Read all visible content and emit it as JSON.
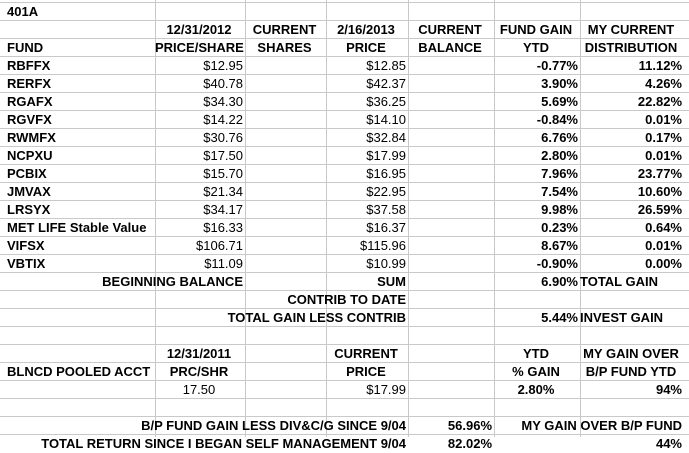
{
  "title": "401A",
  "header1": {
    "date_prev": "12/31/2012",
    "current_shares": "CURRENT",
    "date_now": "2/16/2013",
    "current_balance": "CURRENT",
    "fund_gain": "FUND GAIN",
    "my_current": "MY CURRENT"
  },
  "header2": {
    "fund": "FUND",
    "price_share": "PRICE/SHARE",
    "shares": "SHARES",
    "current_price": "CURRENT",
    "price": "PRICE",
    "balance": "BALANCE",
    "ytd": "YTD",
    "distribution": "DISTRIBUTION"
  },
  "header_row2_price": "PRICE",
  "funds": [
    {
      "name": "RBFFX",
      "prev_price": "$12.95",
      "cur_price": "$12.85",
      "ytd": "-0.77%",
      "dist": "11.12%"
    },
    {
      "name": "RERFX",
      "prev_price": "$40.78",
      "cur_price": "$42.37",
      "ytd": "3.90%",
      "dist": "4.26%"
    },
    {
      "name": "RGAFX",
      "prev_price": "$34.30",
      "cur_price": "$36.25",
      "ytd": "5.69%",
      "dist": "22.82%"
    },
    {
      "name": "RGVFX",
      "prev_price": "$14.22",
      "cur_price": "$14.10",
      "ytd": "-0.84%",
      "dist": "0.01%"
    },
    {
      "name": "RWMFX",
      "prev_price": "$30.76",
      "cur_price": "$32.84",
      "ytd": "6.76%",
      "dist": "0.17%"
    },
    {
      "name": "NCPXU",
      "prev_price": "$17.50",
      "cur_price": "$17.99",
      "ytd": "2.80%",
      "dist": "0.01%"
    },
    {
      "name": "PCBIX",
      "prev_price": "$15.70",
      "cur_price": "$16.95",
      "ytd": "7.96%",
      "dist": "23.77%"
    },
    {
      "name": "JMVAX",
      "prev_price": "$21.34",
      "cur_price": "$22.95",
      "ytd": "7.54%",
      "dist": "10.60%"
    },
    {
      "name": "LRSYX",
      "prev_price": "$34.17",
      "cur_price": "$37.58",
      "ytd": "9.98%",
      "dist": "26.59%"
    },
    {
      "name": "MET LIFE Stable Value",
      "prev_price": "$16.33",
      "cur_price": "$16.37",
      "ytd": "0.23%",
      "dist": "0.64%"
    },
    {
      "name": "VIFSX",
      "prev_price": "$106.71",
      "cur_price": "$115.96",
      "ytd": "8.67%",
      "dist": "0.01%"
    },
    {
      "name": "VBTIX",
      "prev_price": "$11.09",
      "cur_price": "$10.99",
      "ytd": "-0.90%",
      "dist": "0.00%"
    }
  ],
  "summary": {
    "beginning_balance": "BEGINNING BALANCE",
    "sum": "SUM",
    "total_gain_value": "6.90%",
    "total_gain_label": "TOTAL GAIN",
    "contrib_to_date": "CONTRIB TO DATE",
    "total_gain_less_contrib": "TOTAL GAIN LESS CONTRIB",
    "invest_gain_value": "5.44%",
    "invest_gain_label": "INVEST GAIN"
  },
  "pooled": {
    "date": "12/31/2011",
    "current": "CURRENT",
    "ytd": "YTD",
    "my_gain_over": "MY GAIN OVER",
    "acct_name": "BLNCD POOLED ACCT",
    "prc_shr": "PRC/SHR",
    "price": "PRICE",
    "pct_gain": "% GAIN",
    "bp_fund_ytd": "B/P FUND YTD",
    "prev_price": "17.50",
    "cur_price": "$17.99",
    "ytd_value": "2.80%",
    "gain_over_value": "94%"
  },
  "footer": {
    "bp_gain_label": "B/P FUND GAIN LESS DIV&C/G SINCE 9/04",
    "bp_gain_value": "56.96%",
    "my_gain_over_bp": "MY GAIN OVER  B/P FUND",
    "total_return_label": "TOTAL RETURN SINCE I BEGAN SELF MANAGEMENT 9/04",
    "total_return_value": "82.02%",
    "my_gain_over_bp_value": "44%"
  }
}
